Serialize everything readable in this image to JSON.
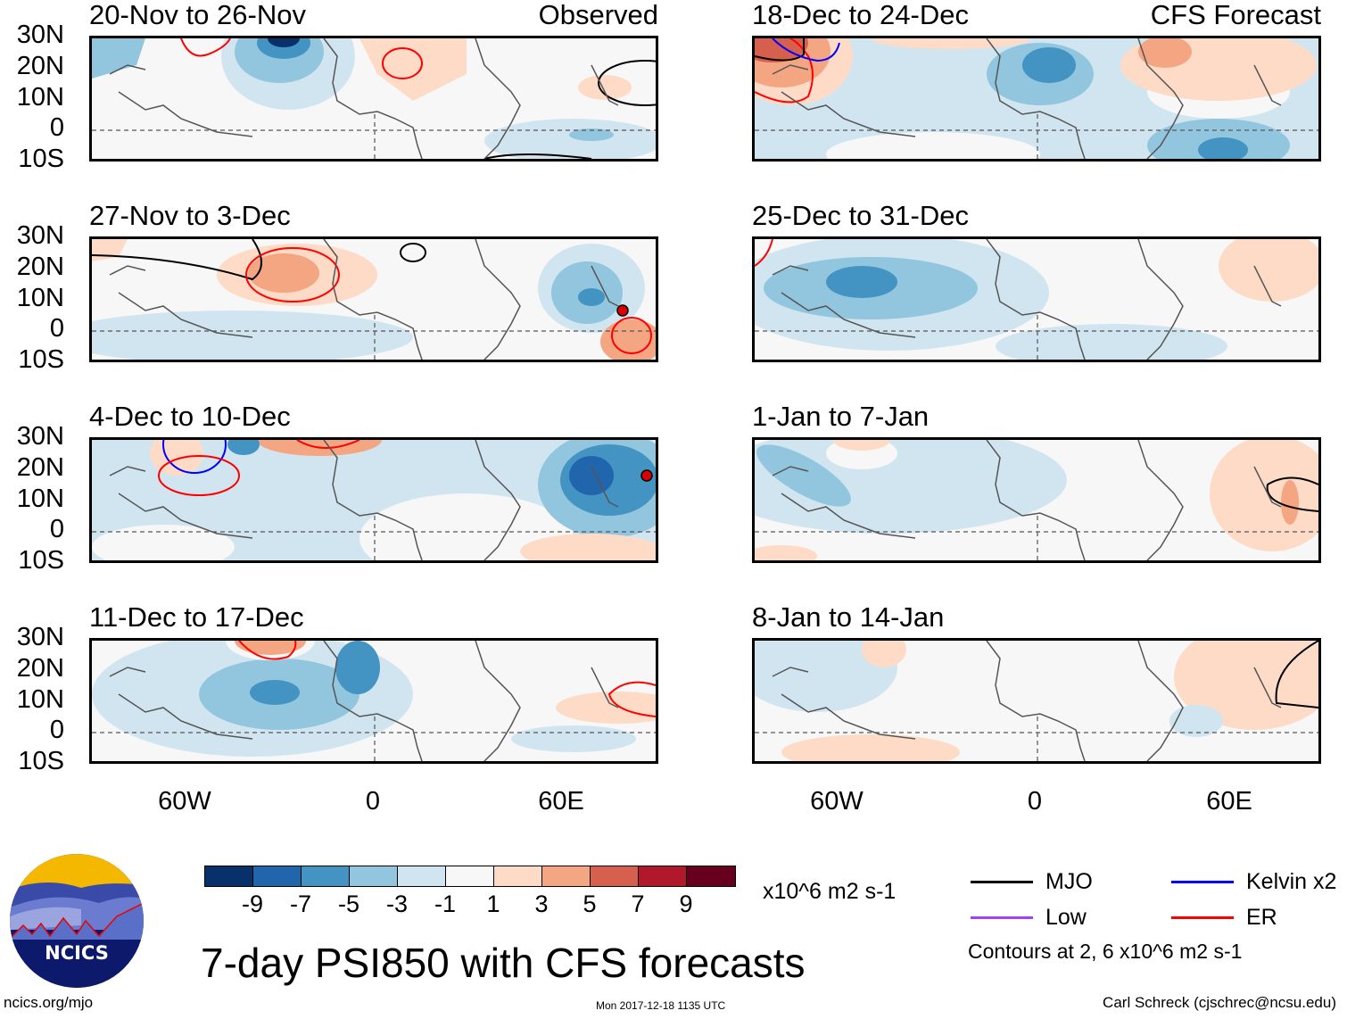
{
  "figure": {
    "title": "7-day PSI850 with CFS forecasts",
    "left_column_label": "Observed",
    "right_column_label": "CFS Forecast",
    "footer_left": "ncics.org/mjo",
    "footer_timestamp": "Mon 2017-12-18 1135 UTC",
    "footer_right": "Carl Schreck (cjschrec@ncsu.edu)",
    "logo_text": "NCICS"
  },
  "axes": {
    "y_ticks": [
      "30N",
      "20N",
      "10N",
      "0",
      "10S"
    ],
    "x_ticks": [
      "60W",
      "0",
      "60E"
    ]
  },
  "panels": [
    {
      "id": "p1",
      "title": "20-Nov to 26-Nov",
      "type": "observed"
    },
    {
      "id": "p2",
      "title": "27-Nov to 3-Dec",
      "type": "observed"
    },
    {
      "id": "p3",
      "title": "4-Dec to 10-Dec",
      "type": "observed"
    },
    {
      "id": "p4",
      "title": "11-Dec to 17-Dec",
      "type": "observed"
    },
    {
      "id": "p5",
      "title": "18-Dec to 24-Dec",
      "type": "forecast"
    },
    {
      "id": "p6",
      "title": "25-Dec to 31-Dec",
      "type": "forecast"
    },
    {
      "id": "p7",
      "title": "1-Jan to 7-Jan",
      "type": "forecast"
    },
    {
      "id": "p8",
      "title": "8-Jan to 14-Jan",
      "type": "forecast"
    }
  ],
  "colorbar": {
    "units": "x10^6 m2 s-1",
    "ticks": [
      "-9",
      "-7",
      "-5",
      "-3",
      "-1",
      "1",
      "3",
      "5",
      "7",
      "9"
    ],
    "colors": [
      "#08306b",
      "#2166ac",
      "#4393c3",
      "#92c5de",
      "#d1e5f0",
      "#f7f7f7",
      "#fddbc7",
      "#f4a582",
      "#d6604d",
      "#b2182b",
      "#67001f"
    ]
  },
  "legend": {
    "items": [
      {
        "label": "MJO",
        "color": "#000000"
      },
      {
        "label": "Kelvin x2",
        "color": "#0000ff"
      },
      {
        "label": "Low",
        "color": "#a040ff"
      },
      {
        "label": "ER",
        "color": "#ff0000"
      }
    ],
    "contour_note": "Contours at 2, 6 x10^6 m2 s-1"
  }
}
